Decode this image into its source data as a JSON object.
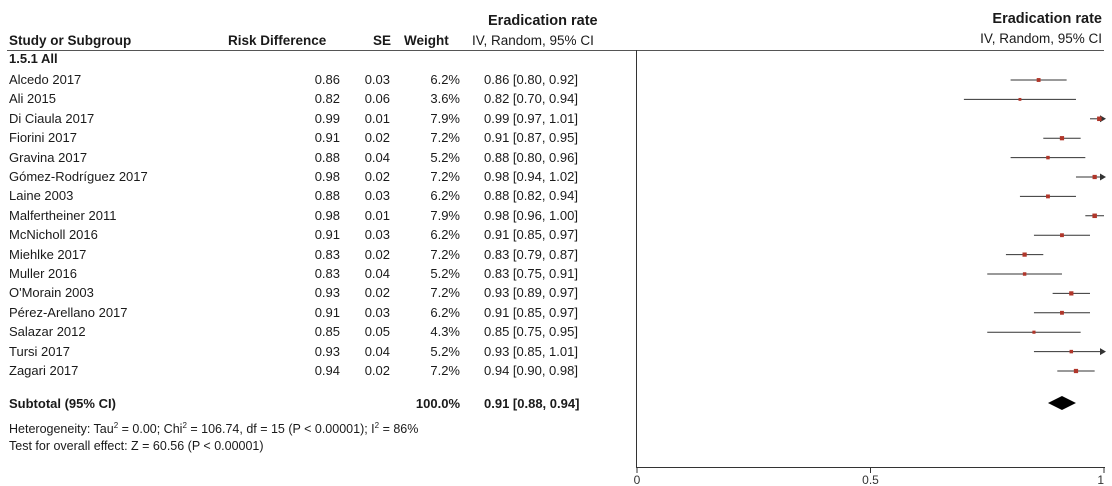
{
  "table": {
    "heading_group": "Eradication rate",
    "col_study": "Study or Subgroup",
    "col_rd": "Risk Difference",
    "col_se": "SE",
    "col_weight": "Weight",
    "col_ci": "IV, Random, 95% CI",
    "subgroup": "1.5.1 All",
    "subtotal": {
      "label": "Subtotal (95% CI)",
      "weight": "100.0%",
      "ci": "0.91 [0.88, 0.94]"
    },
    "heterogeneity_prefix": "Heterogeneity: Tau",
    "heterogeneity_tau_val": " = 0.00; Chi",
    "heterogeneity_chi_val": " = 106.74, df = 15 (P < 0.00001); I",
    "heterogeneity_i2_val": " = 86%",
    "superscript": "2",
    "overall": "Test for overall effect: Z = 60.56 (P < 0.00001)"
  },
  "plot_header": {
    "title": "Eradication rate",
    "subtitle": "IV, Random, 95% CI"
  },
  "colors": {
    "point": "#b0362a",
    "line": "#333333",
    "diamond": "#000000"
  },
  "chart_data": {
    "type": "forest",
    "studies": [
      {
        "name": "Alcedo 2017",
        "rd": "0.86",
        "se": "0.03",
        "weight": "6.2%",
        "ci_text": "0.86 [0.80, 0.92]",
        "est": 0.86,
        "lo": 0.8,
        "hi": 0.92
      },
      {
        "name": "Ali 2015",
        "rd": "0.82",
        "se": "0.06",
        "weight": "3.6%",
        "ci_text": "0.82 [0.70, 0.94]",
        "est": 0.82,
        "lo": 0.7,
        "hi": 0.94
      },
      {
        "name": "Di Ciaula 2017",
        "rd": "0.99",
        "se": "0.01",
        "weight": "7.9%",
        "ci_text": "0.99 [0.97, 1.01]",
        "est": 0.99,
        "lo": 0.97,
        "hi": 1.01
      },
      {
        "name": "Fiorini 2017",
        "rd": "0.91",
        "se": "0.02",
        "weight": "7.2%",
        "ci_text": "0.91 [0.87, 0.95]",
        "est": 0.91,
        "lo": 0.87,
        "hi": 0.95
      },
      {
        "name": "Gravina 2017",
        "rd": "0.88",
        "se": "0.04",
        "weight": "5.2%",
        "ci_text": "0.88 [0.80, 0.96]",
        "est": 0.88,
        "lo": 0.8,
        "hi": 0.96
      },
      {
        "name": "Gómez-Rodríguez 2017",
        "rd": "0.98",
        "se": "0.02",
        "weight": "7.2%",
        "ci_text": "0.98 [0.94, 1.02]",
        "est": 0.98,
        "lo": 0.94,
        "hi": 1.02
      },
      {
        "name": "Laine 2003",
        "rd": "0.88",
        "se": "0.03",
        "weight": "6.2%",
        "ci_text": "0.88 [0.82, 0.94]",
        "est": 0.88,
        "lo": 0.82,
        "hi": 0.94
      },
      {
        "name": "Malfertheiner 2011",
        "rd": "0.98",
        "se": "0.01",
        "weight": "7.9%",
        "ci_text": "0.98 [0.96, 1.00]",
        "est": 0.98,
        "lo": 0.96,
        "hi": 1.0
      },
      {
        "name": "McNicholl 2016",
        "rd": "0.91",
        "se": "0.03",
        "weight": "6.2%",
        "ci_text": "0.91 [0.85, 0.97]",
        "est": 0.91,
        "lo": 0.85,
        "hi": 0.97
      },
      {
        "name": "Miehlke 2017",
        "rd": "0.83",
        "se": "0.02",
        "weight": "7.2%",
        "ci_text": "0.83 [0.79, 0.87]",
        "est": 0.83,
        "lo": 0.79,
        "hi": 0.87
      },
      {
        "name": "Muller 2016",
        "rd": "0.83",
        "se": "0.04",
        "weight": "5.2%",
        "ci_text": "0.83 [0.75, 0.91]",
        "est": 0.83,
        "lo": 0.75,
        "hi": 0.91
      },
      {
        "name": "O'Morain 2003",
        "rd": "0.93",
        "se": "0.02",
        "weight": "7.2%",
        "ci_text": "0.93 [0.89, 0.97]",
        "est": 0.93,
        "lo": 0.89,
        "hi": 0.97
      },
      {
        "name": "Pérez-Arellano 2017",
        "rd": "0.91",
        "se": "0.03",
        "weight": "6.2%",
        "ci_text": "0.91 [0.85, 0.97]",
        "est": 0.91,
        "lo": 0.85,
        "hi": 0.97
      },
      {
        "name": "Salazar 2012",
        "rd": "0.85",
        "se": "0.05",
        "weight": "4.3%",
        "ci_text": "0.85 [0.75, 0.95]",
        "est": 0.85,
        "lo": 0.75,
        "hi": 0.95
      },
      {
        "name": "Tursi 2017",
        "rd": "0.93",
        "se": "0.04",
        "weight": "5.2%",
        "ci_text": "0.93 [0.85, 1.01]",
        "est": 0.93,
        "lo": 0.85,
        "hi": 1.01
      },
      {
        "name": "Zagari 2017",
        "rd": "0.94",
        "se": "0.02",
        "weight": "7.2%",
        "ci_text": "0.94 [0.90, 0.98]",
        "est": 0.94,
        "lo": 0.9,
        "hi": 0.98
      }
    ],
    "pooled": {
      "est": 0.91,
      "lo": 0.88,
      "hi": 0.94
    },
    "x_ticks": [
      "0",
      "0.5",
      "1"
    ],
    "x_tick_values": [
      0,
      0.5,
      1
    ],
    "xlim": [
      0,
      1
    ]
  }
}
